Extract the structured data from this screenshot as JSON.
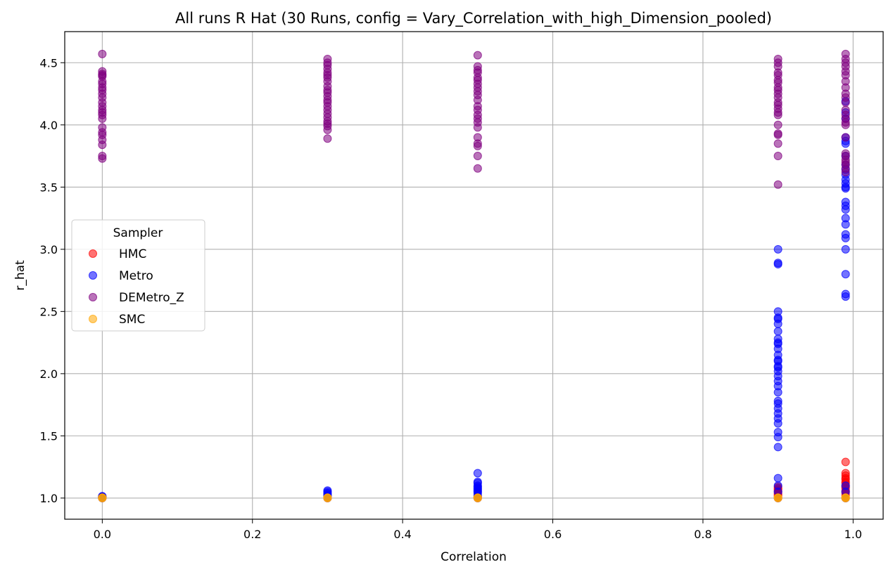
{
  "chart_data": {
    "type": "scatter",
    "title": "All runs R Hat (30 Runs, config = Vary_Correlation_with_high_Dimension_pooled)",
    "xlabel": "Correlation",
    "ylabel": "r_hat",
    "xlim": [
      -0.05,
      1.04
    ],
    "ylim": [
      0.83,
      4.75
    ],
    "xticks": [
      "0.0",
      "0.2",
      "0.4",
      "0.6",
      "0.8",
      "1.0"
    ],
    "yticks": [
      "1.0",
      "1.5",
      "2.0",
      "2.5",
      "3.0",
      "3.5",
      "4.0",
      "4.5"
    ],
    "grid": true,
    "legend": {
      "title": "Sampler",
      "placement": "center-left"
    },
    "series": [
      {
        "name": "HMC",
        "color": "#ff0000",
        "points": [
          [
            0.0,
            1.0
          ],
          [
            0.0,
            1.005
          ],
          [
            0.0,
            1.01
          ],
          [
            0.3,
            1.0
          ],
          [
            0.3,
            1.005
          ],
          [
            0.3,
            1.01
          ],
          [
            0.5,
            1.0
          ],
          [
            0.5,
            1.005
          ],
          [
            0.5,
            1.01
          ],
          [
            0.9,
            1.0
          ],
          [
            0.9,
            1.01
          ],
          [
            0.9,
            1.02
          ],
          [
            0.9,
            1.03
          ],
          [
            0.9,
            1.04
          ],
          [
            0.9,
            1.05
          ],
          [
            0.9,
            1.06
          ],
          [
            0.9,
            1.07
          ],
          [
            0.9,
            1.08
          ],
          [
            0.9,
            1.09
          ],
          [
            0.99,
            1.0
          ],
          [
            0.99,
            1.02
          ],
          [
            0.99,
            1.04
          ],
          [
            0.99,
            1.05
          ],
          [
            0.99,
            1.06
          ],
          [
            0.99,
            1.08
          ],
          [
            0.99,
            1.09
          ],
          [
            0.99,
            1.1
          ],
          [
            0.99,
            1.12
          ],
          [
            0.99,
            1.13
          ],
          [
            0.99,
            1.15
          ],
          [
            0.99,
            1.16
          ],
          [
            0.99,
            1.18
          ],
          [
            0.99,
            1.2
          ],
          [
            0.99,
            1.29
          ]
        ]
      },
      {
        "name": "Metro",
        "color": "#0000ff",
        "points": [
          [
            0.0,
            1.0
          ],
          [
            0.0,
            1.005
          ],
          [
            0.0,
            1.01
          ],
          [
            0.0,
            1.015
          ],
          [
            0.3,
            1.0
          ],
          [
            0.3,
            1.01
          ],
          [
            0.3,
            1.02
          ],
          [
            0.3,
            1.03
          ],
          [
            0.3,
            1.04
          ],
          [
            0.3,
            1.05
          ],
          [
            0.3,
            1.06
          ],
          [
            0.5,
            1.0
          ],
          [
            0.5,
            1.02
          ],
          [
            0.5,
            1.04
          ],
          [
            0.5,
            1.05
          ],
          [
            0.5,
            1.06
          ],
          [
            0.5,
            1.07
          ],
          [
            0.5,
            1.08
          ],
          [
            0.5,
            1.09
          ],
          [
            0.5,
            1.1
          ],
          [
            0.5,
            1.12
          ],
          [
            0.5,
            1.13
          ],
          [
            0.5,
            1.2
          ],
          [
            0.9,
            1.0
          ],
          [
            0.9,
            1.05
          ],
          [
            0.9,
            1.1
          ],
          [
            0.9,
            1.16
          ],
          [
            0.9,
            1.41
          ],
          [
            0.9,
            1.49
          ],
          [
            0.9,
            1.53
          ],
          [
            0.9,
            1.6
          ],
          [
            0.9,
            1.64
          ],
          [
            0.9,
            1.68
          ],
          [
            0.9,
            1.72
          ],
          [
            0.9,
            1.76
          ],
          [
            0.9,
            1.78
          ],
          [
            0.9,
            1.85
          ],
          [
            0.9,
            1.9
          ],
          [
            0.9,
            1.94
          ],
          [
            0.9,
            1.98
          ],
          [
            0.9,
            2.02
          ],
          [
            0.9,
            2.05
          ],
          [
            0.9,
            2.06
          ],
          [
            0.9,
            2.1
          ],
          [
            0.9,
            2.11
          ],
          [
            0.9,
            2.15
          ],
          [
            0.9,
            2.2
          ],
          [
            0.9,
            2.24
          ],
          [
            0.9,
            2.25
          ],
          [
            0.9,
            2.28
          ],
          [
            0.9,
            2.34
          ],
          [
            0.9,
            2.4
          ],
          [
            0.9,
            2.44
          ],
          [
            0.9,
            2.45
          ],
          [
            0.9,
            2.5
          ],
          [
            0.9,
            2.88
          ],
          [
            0.9,
            2.89
          ],
          [
            0.9,
            3.0
          ],
          [
            0.99,
            1.0
          ],
          [
            0.99,
            1.05
          ],
          [
            0.99,
            1.1
          ],
          [
            0.99,
            2.62
          ],
          [
            0.99,
            2.64
          ],
          [
            0.99,
            2.8
          ],
          [
            0.99,
            3.0
          ],
          [
            0.99,
            3.09
          ],
          [
            0.99,
            3.12
          ],
          [
            0.99,
            3.2
          ],
          [
            0.99,
            3.25
          ],
          [
            0.99,
            3.32
          ],
          [
            0.99,
            3.35
          ],
          [
            0.99,
            3.38
          ],
          [
            0.99,
            3.49
          ],
          [
            0.99,
            3.5
          ],
          [
            0.99,
            3.53
          ],
          [
            0.99,
            3.56
          ],
          [
            0.99,
            3.6
          ],
          [
            0.99,
            3.64
          ],
          [
            0.99,
            3.68
          ],
          [
            0.99,
            3.75
          ],
          [
            0.99,
            3.85
          ],
          [
            0.99,
            3.87
          ],
          [
            0.99,
            3.9
          ],
          [
            0.99,
            4.05
          ],
          [
            0.99,
            4.1
          ],
          [
            0.99,
            4.19
          ]
        ]
      },
      {
        "name": "DEMetro_Z",
        "color": "#800080",
        "points": [
          [
            0.0,
            3.73
          ],
          [
            0.0,
            3.75
          ],
          [
            0.0,
            3.84
          ],
          [
            0.0,
            3.88
          ],
          [
            0.0,
            3.92
          ],
          [
            0.0,
            3.94
          ],
          [
            0.0,
            3.98
          ],
          [
            0.0,
            4.05
          ],
          [
            0.0,
            4.08
          ],
          [
            0.0,
            4.1
          ],
          [
            0.0,
            4.12
          ],
          [
            0.0,
            4.15
          ],
          [
            0.0,
            4.18
          ],
          [
            0.0,
            4.22
          ],
          [
            0.0,
            4.25
          ],
          [
            0.0,
            4.28
          ],
          [
            0.0,
            4.3
          ],
          [
            0.0,
            4.33
          ],
          [
            0.0,
            4.35
          ],
          [
            0.0,
            4.39
          ],
          [
            0.0,
            4.4
          ],
          [
            0.0,
            4.41
          ],
          [
            0.0,
            4.43
          ],
          [
            0.0,
            4.57
          ],
          [
            0.3,
            3.89
          ],
          [
            0.3,
            3.96
          ],
          [
            0.3,
            3.99
          ],
          [
            0.3,
            4.01
          ],
          [
            0.3,
            4.03
          ],
          [
            0.3,
            4.06
          ],
          [
            0.3,
            4.09
          ],
          [
            0.3,
            4.12
          ],
          [
            0.3,
            4.15
          ],
          [
            0.3,
            4.18
          ],
          [
            0.3,
            4.2
          ],
          [
            0.3,
            4.23
          ],
          [
            0.3,
            4.26
          ],
          [
            0.3,
            4.28
          ],
          [
            0.3,
            4.31
          ],
          [
            0.3,
            4.35
          ],
          [
            0.3,
            4.38
          ],
          [
            0.3,
            4.4
          ],
          [
            0.3,
            4.42
          ],
          [
            0.3,
            4.45
          ],
          [
            0.3,
            4.48
          ],
          [
            0.3,
            4.5
          ],
          [
            0.3,
            4.53
          ],
          [
            0.5,
            3.65
          ],
          [
            0.5,
            3.75
          ],
          [
            0.5,
            3.83
          ],
          [
            0.5,
            3.85
          ],
          [
            0.5,
            3.9
          ],
          [
            0.5,
            3.98
          ],
          [
            0.5,
            4.02
          ],
          [
            0.5,
            4.05
          ],
          [
            0.5,
            4.08
          ],
          [
            0.5,
            4.12
          ],
          [
            0.5,
            4.15
          ],
          [
            0.5,
            4.2
          ],
          [
            0.5,
            4.24
          ],
          [
            0.5,
            4.27
          ],
          [
            0.5,
            4.3
          ],
          [
            0.5,
            4.33
          ],
          [
            0.5,
            4.36
          ],
          [
            0.5,
            4.38
          ],
          [
            0.5,
            4.42
          ],
          [
            0.5,
            4.44
          ],
          [
            0.5,
            4.47
          ],
          [
            0.5,
            4.56
          ],
          [
            0.9,
            3.52
          ],
          [
            0.9,
            3.75
          ],
          [
            0.9,
            3.85
          ],
          [
            0.9,
            3.92
          ],
          [
            0.9,
            3.93
          ],
          [
            0.9,
            4.0
          ],
          [
            0.9,
            4.08
          ],
          [
            0.9,
            4.1
          ],
          [
            0.9,
            4.13
          ],
          [
            0.9,
            4.16
          ],
          [
            0.9,
            4.18
          ],
          [
            0.9,
            4.22
          ],
          [
            0.9,
            4.25
          ],
          [
            0.9,
            4.28
          ],
          [
            0.9,
            4.3
          ],
          [
            0.9,
            4.34
          ],
          [
            0.9,
            4.36
          ],
          [
            0.9,
            4.4
          ],
          [
            0.9,
            4.42
          ],
          [
            0.9,
            4.47
          ],
          [
            0.9,
            4.5
          ],
          [
            0.9,
            4.53
          ],
          [
            0.99,
            3.62
          ],
          [
            0.99,
            3.65
          ],
          [
            0.99,
            3.68
          ],
          [
            0.99,
            3.7
          ],
          [
            0.99,
            3.72
          ],
          [
            0.99,
            3.75
          ],
          [
            0.99,
            3.77
          ],
          [
            0.99,
            3.9
          ],
          [
            0.99,
            4.0
          ],
          [
            0.99,
            4.02
          ],
          [
            0.99,
            4.05
          ],
          [
            0.99,
            4.08
          ],
          [
            0.99,
            4.12
          ],
          [
            0.99,
            4.18
          ],
          [
            0.99,
            4.22
          ],
          [
            0.99,
            4.25
          ],
          [
            0.99,
            4.3
          ],
          [
            0.99,
            4.35
          ],
          [
            0.99,
            4.4
          ],
          [
            0.99,
            4.43
          ],
          [
            0.99,
            4.47
          ],
          [
            0.99,
            4.5
          ],
          [
            0.99,
            4.53
          ],
          [
            0.99,
            4.57
          ]
        ]
      },
      {
        "name": "SMC",
        "color": "#ffa500",
        "points": [
          [
            0.0,
            1.0
          ],
          [
            0.0,
            1.002
          ],
          [
            0.0,
            1.004
          ],
          [
            0.3,
            1.0
          ],
          [
            0.3,
            1.002
          ],
          [
            0.3,
            1.004
          ],
          [
            0.5,
            1.0
          ],
          [
            0.5,
            1.002
          ],
          [
            0.5,
            1.004
          ],
          [
            0.9,
            1.0
          ],
          [
            0.9,
            1.002
          ],
          [
            0.9,
            1.004
          ],
          [
            0.99,
            1.0
          ],
          [
            0.99,
            1.002
          ],
          [
            0.99,
            1.004
          ]
        ]
      }
    ]
  }
}
